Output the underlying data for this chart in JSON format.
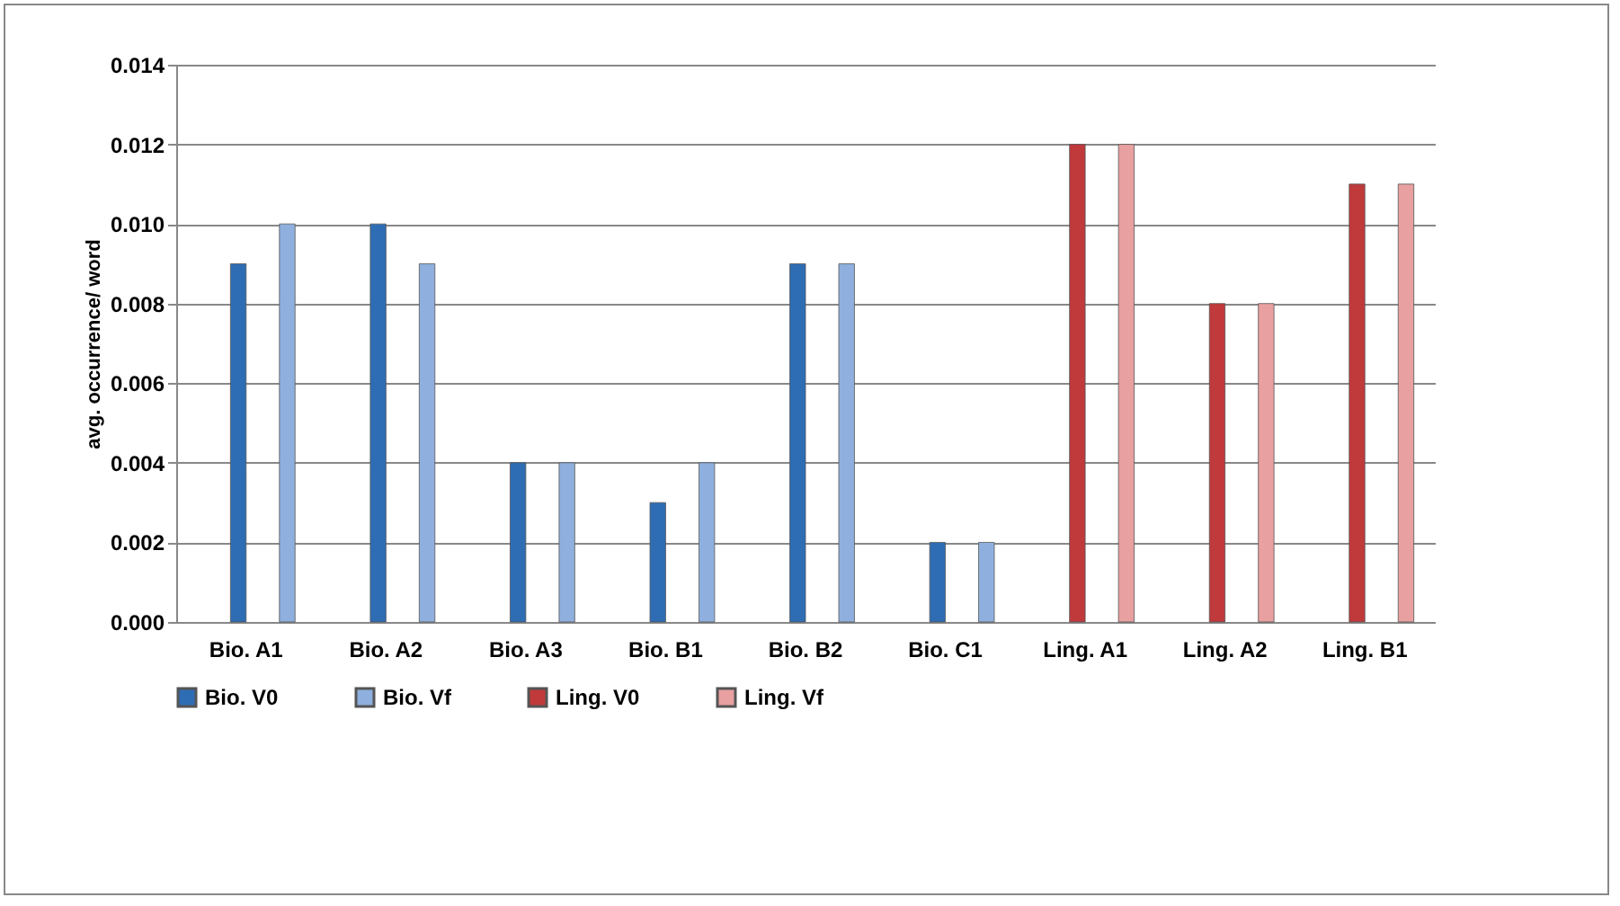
{
  "chart_data": {
    "type": "bar",
    "ylabel": "avg. occurrence/ word",
    "categories": [
      "Bio. A1",
      "Bio. A2",
      "Bio. A3",
      "Bio. B1",
      "Bio. B2",
      "Bio. C1",
      "Ling. A1",
      "Ling. A2",
      "Ling. B1"
    ],
    "series": [
      {
        "name": "Bio. V0",
        "color": "#2e6db4",
        "values": [
          0.009,
          0.01,
          0.004,
          0.003,
          0.009,
          0.002,
          null,
          null,
          null
        ]
      },
      {
        "name": "Bio. Vf",
        "color": "#8fb0de",
        "values": [
          0.01,
          0.009,
          0.004,
          0.004,
          0.009,
          0.002,
          null,
          null,
          null
        ]
      },
      {
        "name": "Ling. V0",
        "color": "#c0393b",
        "values": [
          null,
          null,
          null,
          null,
          null,
          null,
          0.012,
          0.008,
          0.011
        ]
      },
      {
        "name": "Ling. Vf",
        "color": "#e8a0a0",
        "values": [
          null,
          null,
          null,
          null,
          null,
          null,
          0.012,
          0.008,
          0.011
        ]
      }
    ],
    "ylim": [
      0,
      0.014
    ],
    "yticks": [
      {
        "value": 0,
        "label": "0.000"
      },
      {
        "value": 0.002,
        "label": "0.002"
      },
      {
        "value": 0.004,
        "label": "0.004"
      },
      {
        "value": 0.006,
        "label": "0.006"
      },
      {
        "value": 0.008,
        "label": "0.008"
      },
      {
        "value": 0.01,
        "label": "0.010"
      },
      {
        "value": 0.012,
        "label": "0.012"
      },
      {
        "value": 0.014,
        "label": "0.014"
      }
    ],
    "grid": "y",
    "legend": "bottom"
  }
}
